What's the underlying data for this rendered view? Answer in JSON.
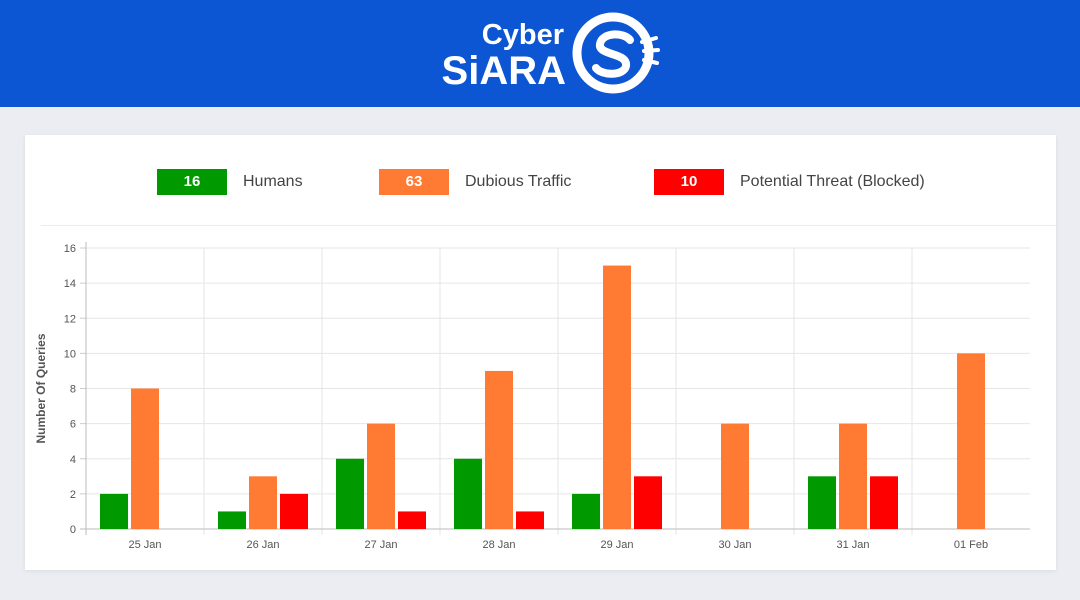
{
  "header": {
    "logo_word_top": "Cyber",
    "logo_word_bottom": "SiARA",
    "logo_mark": "s-swirl-logo",
    "background": "#0c55d3"
  },
  "summary": [
    {
      "count": "16",
      "label": "Humans",
      "color": "#009900"
    },
    {
      "count": "63",
      "label": "Dubious Traffic",
      "color": "#ff7a33"
    },
    {
      "count": "10",
      "label": "Potential Threat (Blocked)",
      "color": "#ff0000"
    }
  ],
  "chart_data": {
    "type": "bar",
    "ylabel": "Number Of Queries",
    "xlabel": "",
    "ylim": [
      0,
      16
    ],
    "yticks": [
      0,
      2,
      4,
      6,
      8,
      10,
      12,
      14,
      16
    ],
    "grid": true,
    "categories": [
      "25 Jan",
      "26 Jan",
      "27 Jan",
      "28 Jan",
      "29 Jan",
      "30 Jan",
      "31 Jan",
      "01 Feb"
    ],
    "series": [
      {
        "name": "Humans",
        "color": "#009900",
        "values": [
          2,
          1,
          4,
          4,
          2,
          0,
          3,
          0
        ]
      },
      {
        "name": "Dubious Traffic",
        "color": "#ff7a33",
        "values": [
          8,
          3,
          6,
          9,
          15,
          6,
          6,
          10
        ]
      },
      {
        "name": "Potential Threat (Blocked)",
        "color": "#ff0000",
        "values": [
          0,
          2,
          1,
          1,
          3,
          0,
          3,
          0
        ]
      }
    ]
  }
}
